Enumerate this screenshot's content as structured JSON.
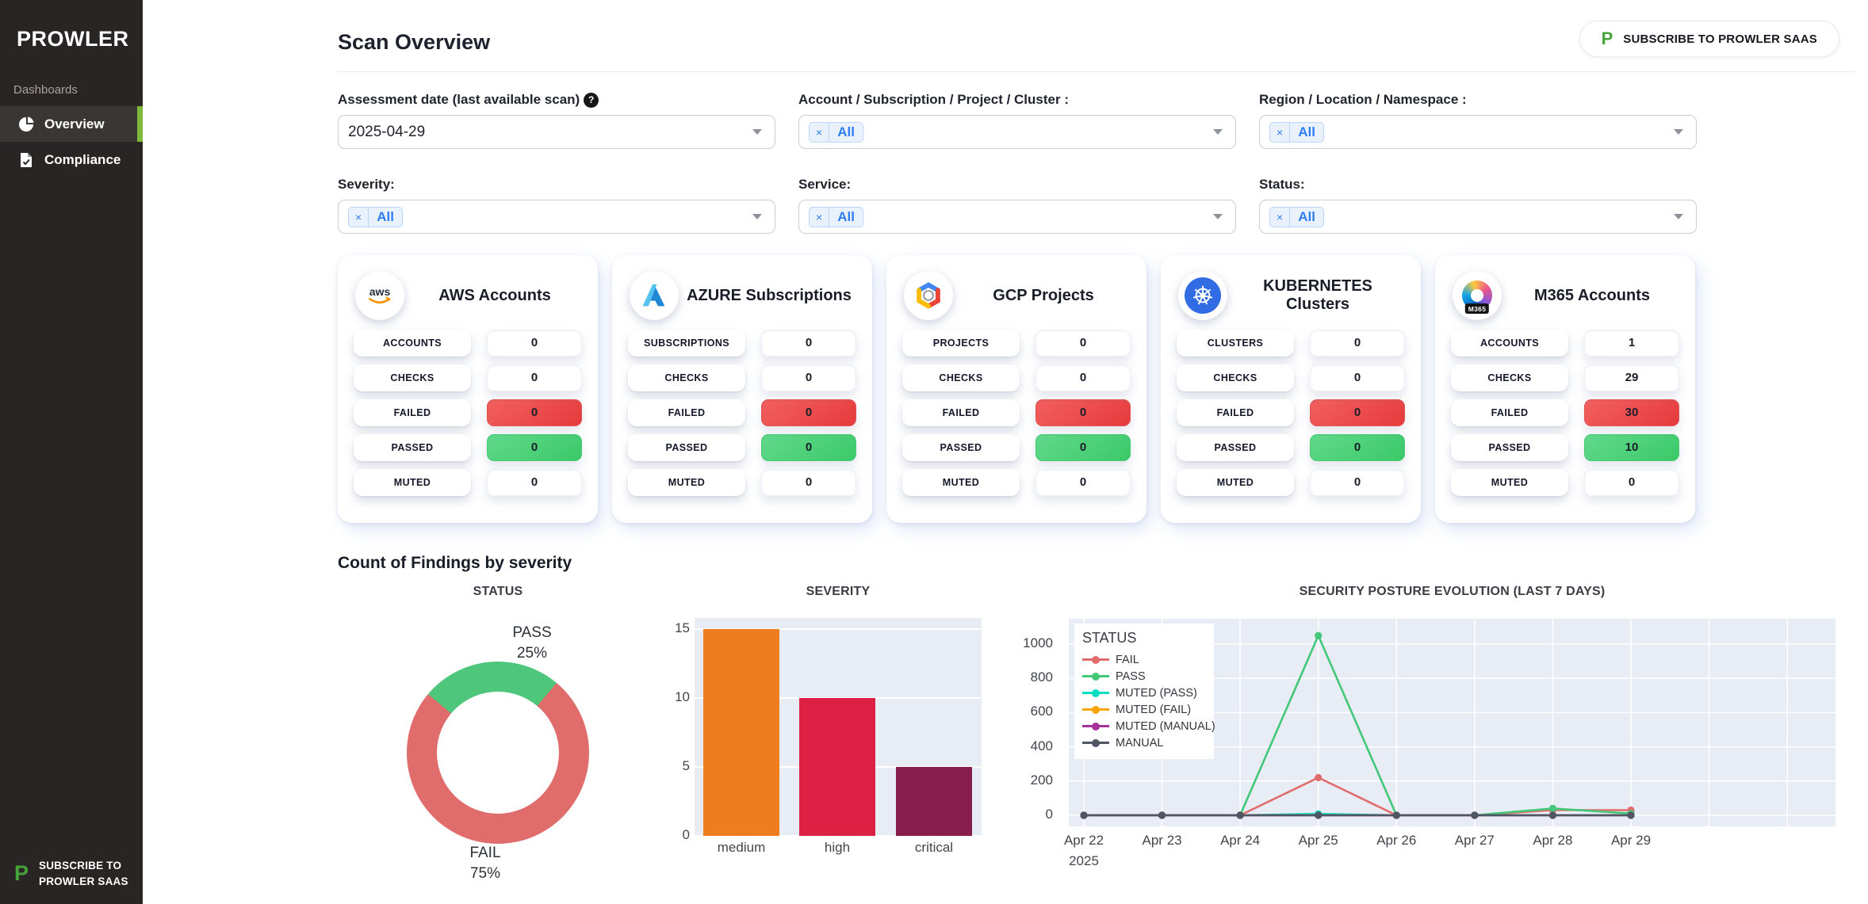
{
  "sidebar": {
    "logo": "PROWLER",
    "section_label": "Dashboards",
    "items": [
      {
        "label": "Overview",
        "active": true
      },
      {
        "label": "Compliance",
        "active": false
      }
    ],
    "subscribe": {
      "logo_letter": "P",
      "line1": "SUBSCRIBE TO",
      "line2": "PROWLER SAAS"
    }
  },
  "header": {
    "title": "Scan Overview",
    "subscribe_button": {
      "logo_letter": "P",
      "label": "SUBSCRIBE TO PROWLER SAAS"
    }
  },
  "filters": [
    {
      "id": "assessment-date",
      "label": "Assessment date (last available scan)",
      "help_icon": true,
      "value": "2025-04-29",
      "chip": null
    },
    {
      "id": "account",
      "label": "Account / Subscription / Project / Cluster :",
      "help_icon": false,
      "value": null,
      "chip": "All"
    },
    {
      "id": "region",
      "label": "Region / Location / Namespace :",
      "help_icon": false,
      "value": null,
      "chip": "All"
    },
    {
      "id": "severity",
      "label": "Severity:",
      "help_icon": false,
      "value": null,
      "chip": "All"
    },
    {
      "id": "service",
      "label": "Service:",
      "help_icon": false,
      "value": null,
      "chip": "All"
    },
    {
      "id": "status",
      "label": "Status:",
      "help_icon": false,
      "value": null,
      "chip": "All"
    }
  ],
  "provider_cards": [
    {
      "provider": "aws",
      "title": "AWS Accounts",
      "rows": [
        {
          "label": "ACCOUNTS",
          "value": "0",
          "variant": "plain"
        },
        {
          "label": "CHECKS",
          "value": "0",
          "variant": "plain"
        },
        {
          "label": "FAILED",
          "value": "0",
          "variant": "failed"
        },
        {
          "label": "PASSED",
          "value": "0",
          "variant": "passed"
        },
        {
          "label": "MUTED",
          "value": "0",
          "variant": "plain"
        }
      ]
    },
    {
      "provider": "azure",
      "title": "AZURE Subscriptions",
      "rows": [
        {
          "label": "SUBSCRIPTIONS",
          "value": "0",
          "variant": "plain"
        },
        {
          "label": "CHECKS",
          "value": "0",
          "variant": "plain"
        },
        {
          "label": "FAILED",
          "value": "0",
          "variant": "failed"
        },
        {
          "label": "PASSED",
          "value": "0",
          "variant": "passed"
        },
        {
          "label": "MUTED",
          "value": "0",
          "variant": "plain"
        }
      ]
    },
    {
      "provider": "gcp",
      "title": "GCP Projects",
      "rows": [
        {
          "label": "PROJECTS",
          "value": "0",
          "variant": "plain"
        },
        {
          "label": "CHECKS",
          "value": "0",
          "variant": "plain"
        },
        {
          "label": "FAILED",
          "value": "0",
          "variant": "failed"
        },
        {
          "label": "PASSED",
          "value": "0",
          "variant": "passed"
        },
        {
          "label": "MUTED",
          "value": "0",
          "variant": "plain"
        }
      ]
    },
    {
      "provider": "kubernetes",
      "title": "KUBERNETES Clusters",
      "rows": [
        {
          "label": "CLUSTERS",
          "value": "0",
          "variant": "plain"
        },
        {
          "label": "CHECKS",
          "value": "0",
          "variant": "plain"
        },
        {
          "label": "FAILED",
          "value": "0",
          "variant": "failed"
        },
        {
          "label": "PASSED",
          "value": "0",
          "variant": "passed"
        },
        {
          "label": "MUTED",
          "value": "0",
          "variant": "plain"
        }
      ]
    },
    {
      "provider": "m365",
      "title": "M365 Accounts",
      "icon_badge": "M365",
      "rows": [
        {
          "label": "ACCOUNTS",
          "value": "1",
          "variant": "plain"
        },
        {
          "label": "CHECKS",
          "value": "29",
          "variant": "plain"
        },
        {
          "label": "FAILED",
          "value": "30",
          "variant": "failed"
        },
        {
          "label": "PASSED",
          "value": "10",
          "variant": "passed"
        },
        {
          "label": "MUTED",
          "value": "0",
          "variant": "plain"
        }
      ]
    }
  ],
  "findings_section": {
    "heading": "Count of Findings by severity"
  },
  "chart_data": [
    {
      "type": "pie",
      "title": "STATUS",
      "labels": [
        "PASS",
        "FAIL"
      ],
      "values": [
        25,
        75
      ],
      "unit": "%",
      "colors": [
        "#4ec67c",
        "#e06c6c"
      ],
      "hole": 0.67,
      "start_angle_deg": -50,
      "annotations": [
        {
          "text1": "PASS",
          "text2": "25%"
        },
        {
          "text1": "FAIL",
          "text2": "75%"
        }
      ]
    },
    {
      "type": "bar",
      "title": "SEVERITY",
      "categories": [
        "medium",
        "high",
        "critical"
      ],
      "values": [
        15,
        10,
        5
      ],
      "colors": [
        "#ee7d1f",
        "#dc2144",
        "#871d4b"
      ],
      "xlabel": "",
      "ylabel": "",
      "ylim": [
        0,
        15.8
      ],
      "yticks": [
        0,
        5,
        10,
        15
      ],
      "grid": true
    },
    {
      "type": "line",
      "title": "SECURITY POSTURE EVOLUTION (LAST 7 DAYS)",
      "legend_title": "STATUS",
      "legend_position": "top-left",
      "x": [
        "Apr 22",
        "Apr 23",
        "Apr 24",
        "Apr 25",
        "Apr 26",
        "Apr 27",
        "Apr 28",
        "Apr 29"
      ],
      "x_sub_label": "2025",
      "yticks": [
        0,
        200,
        400,
        600,
        800,
        1000
      ],
      "ylim": [
        -90,
        1140
      ],
      "grid": true,
      "series": [
        {
          "name": "FAIL",
          "color": "#e06c6c",
          "values": [
            0,
            0,
            0,
            220,
            0,
            0,
            30,
            30
          ]
        },
        {
          "name": "PASS",
          "color": "#42c878",
          "values": [
            0,
            0,
            0,
            1050,
            0,
            0,
            40,
            10
          ]
        },
        {
          "name": "MUTED (PASS)",
          "color": "#00dfc3",
          "values": [
            0,
            0,
            0,
            8,
            0,
            0,
            0,
            0
          ]
        },
        {
          "name": "MUTED (FAIL)",
          "color": "#f8a300",
          "values": [
            0,
            0,
            0,
            0,
            0,
            0,
            0,
            0
          ]
        },
        {
          "name": "MUTED (MANUAL)",
          "color": "#a63399",
          "values": [
            0,
            0,
            0,
            0,
            0,
            0,
            0,
            0
          ]
        },
        {
          "name": "MANUAL",
          "color": "#4e5663",
          "values": [
            0,
            0,
            0,
            0,
            0,
            0,
            0,
            0
          ]
        }
      ]
    }
  ]
}
